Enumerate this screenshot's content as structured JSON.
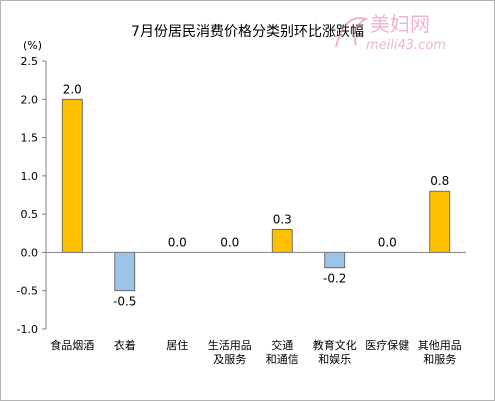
{
  "chart_data": {
    "type": "bar",
    "title": "7月份居民消费价格分类别环比涨跌幅",
    "unit": "(%)",
    "categories": [
      [
        "食品烟酒"
      ],
      [
        "衣着"
      ],
      [
        "居住"
      ],
      [
        "生活用品",
        "及服务"
      ],
      [
        "交通",
        "和通信"
      ],
      [
        "教育文化",
        "和娱乐"
      ],
      [
        "医疗保健"
      ],
      [
        "其他用品",
        "和服务"
      ]
    ],
    "values": [
      2.0,
      -0.5,
      0.0,
      0.0,
      0.3,
      -0.2,
      0.0,
      0.8
    ],
    "data_labels": [
      "2.0",
      "-0.5",
      "0.0",
      "0.0",
      "0.3",
      "-0.2",
      "0.0",
      "0.8"
    ],
    "ylim": [
      -1.0,
      2.5
    ],
    "yticks": [
      "-1.0",
      "-0.5",
      "0.0",
      "0.5",
      "1.0",
      "1.5",
      "2.0",
      "2.5"
    ],
    "grid": false,
    "colors": {
      "positive": "#FFC000",
      "negative": "#9DC3E6",
      "bar_stroke": "#555555",
      "axis": "#808080"
    }
  },
  "watermark": {
    "text_cn": "美妇网",
    "text_url": "meili43.com"
  }
}
